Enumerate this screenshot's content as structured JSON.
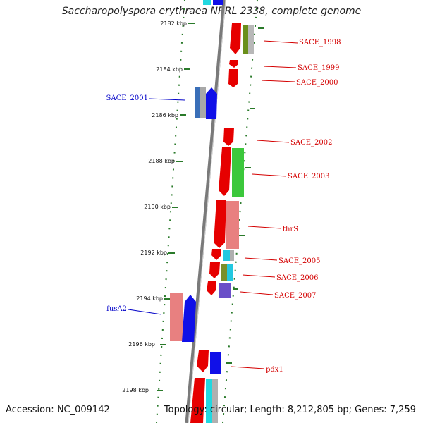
{
  "title": "Saccharopolyspora erythraea NRRL 2338, complete genome",
  "accession": "Accession: NC_009142",
  "topology": "Topology: circular; Length: 8,212,805 bp; Genes: 7,259",
  "colors": {
    "forward_label": "#d40000",
    "reverse_label": "#0000c8",
    "backbone": "#8c8c8c",
    "tick": "#2a7a2a"
  },
  "ticks": [
    "2182 kbp",
    "2184 kbp",
    "2186 kbp",
    "2188 kbp",
    "2190 kbp",
    "2192 kbp",
    "2194 kbp",
    "2196 kbp",
    "2198 kbp"
  ],
  "gene_labels": [
    {
      "name": "SACE_1998",
      "strand": "forward"
    },
    {
      "name": "SACE_1999",
      "strand": "forward"
    },
    {
      "name": "SACE_2000",
      "strand": "forward"
    },
    {
      "name": "SACE_2001",
      "strand": "reverse"
    },
    {
      "name": "SACE_2002",
      "strand": "forward"
    },
    {
      "name": "SACE_2003",
      "strand": "forward"
    },
    {
      "name": "thrS",
      "strand": "forward"
    },
    {
      "name": "SACE_2005",
      "strand": "forward"
    },
    {
      "name": "SACE_2006",
      "strand": "forward"
    },
    {
      "name": "SACE_2007",
      "strand": "forward"
    },
    {
      "name": "fusA2",
      "strand": "reverse"
    },
    {
      "name": "pdx1",
      "strand": "forward"
    }
  ]
}
